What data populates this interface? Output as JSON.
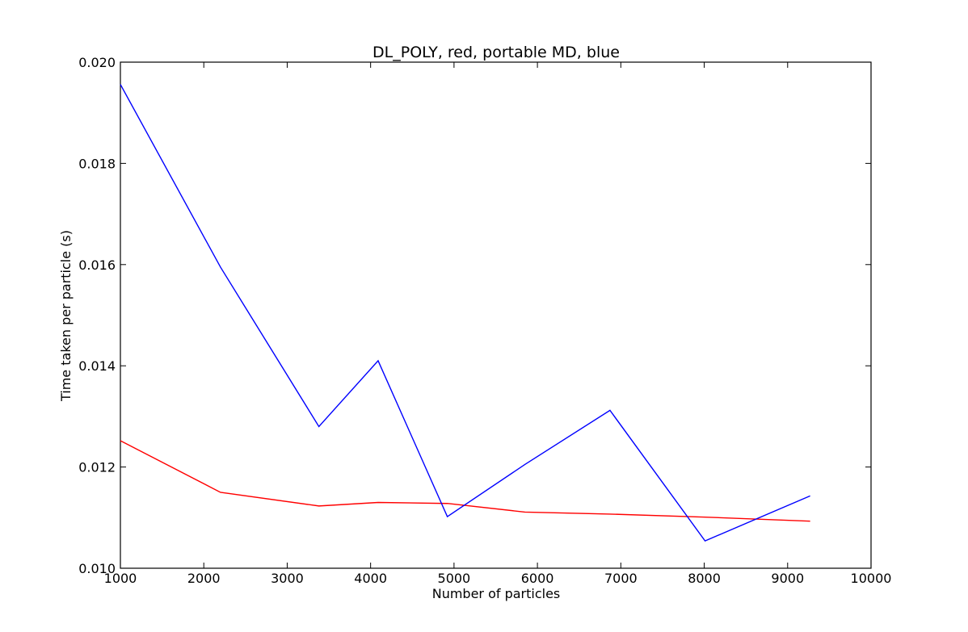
{
  "chart_data": {
    "type": "line",
    "title": "DL_POLY, red, portable MD, blue",
    "xlabel": "Number of particles",
    "ylabel": "Time taken per particle (s)",
    "xlim": [
      1000,
      10000
    ],
    "ylim": [
      0.01,
      0.02
    ],
    "xticks": [
      "1000",
      "2000",
      "3000",
      "4000",
      "5000",
      "6000",
      "7000",
      "8000",
      "9000",
      "10000"
    ],
    "yticks": [
      "0.010",
      "0.012",
      "0.014",
      "0.016",
      "0.018",
      "0.020"
    ],
    "grid": false,
    "series": [
      {
        "color": "#ff0000",
        "x": [
          1000,
          2200,
          3380,
          4090,
          4920,
          5850,
          6870,
          8010,
          9270
        ],
        "y": [
          0.01252,
          0.0115,
          0.01123,
          0.0113,
          0.01128,
          0.01111,
          0.01107,
          0.01101,
          0.01093
        ]
      },
      {
        "color": "#0000ff",
        "x": [
          1000,
          2200,
          3380,
          4090,
          4920,
          5850,
          6870,
          8010,
          9270
        ],
        "y": [
          0.01956,
          0.01595,
          0.0128,
          0.0141,
          0.01102,
          0.01205,
          0.01312,
          0.01054,
          0.01143
        ]
      }
    ]
  }
}
